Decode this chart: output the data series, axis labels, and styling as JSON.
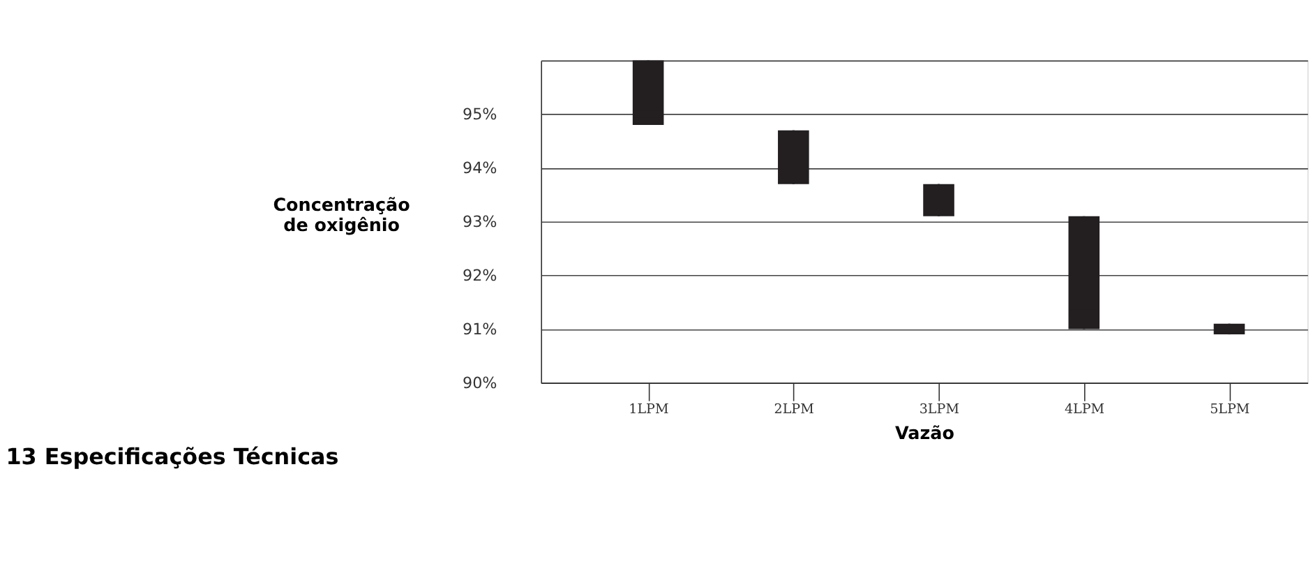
{
  "chart_data": {
    "type": "box",
    "xlabel": "Vazão",
    "ylabel": "Concentração de oxigênio",
    "annotations": [
      "13      Especificações Técnicas"
    ],
    "categories": [
      "1LPM",
      "2LPM",
      "3LPM",
      "4LPM",
      "5LPM"
    ],
    "color": "#231f20",
    "boxes": [
      {
        "low": 94.8,
        "q1": 94.8,
        "median": 95.0,
        "q3": 96.0,
        "high": 96.0
      },
      {
        "low": 93.7,
        "q1": 93.7,
        "median": 94.2,
        "q3": 94.7,
        "high": 94.7
      },
      {
        "low": 93.1,
        "q1": 93.1,
        "median": 93.3,
        "q3": 93.7,
        "high": 93.7
      },
      {
        "low": 91.0,
        "q1": 91.0,
        "median": 91.3,
        "q3": 93.1,
        "high": 93.1
      },
      {
        "low": 90.9,
        "q1": 90.9,
        "median": 91.0,
        "q3": 91.1,
        "high": 91.1
      }
    ],
    "ylim": [
      90,
      96
    ],
    "yticks": [
      {
        "value": 90,
        "label": "90%"
      },
      {
        "value": 91,
        "label": "91%"
      },
      {
        "value": 92,
        "label": "92%"
      },
      {
        "value": 93,
        "label": "93%"
      },
      {
        "value": 94,
        "label": "94%"
      },
      {
        "value": 95,
        "label": "95%"
      },
      {
        "value": 96,
        "label": null
      }
    ],
    "grid": "y"
  }
}
